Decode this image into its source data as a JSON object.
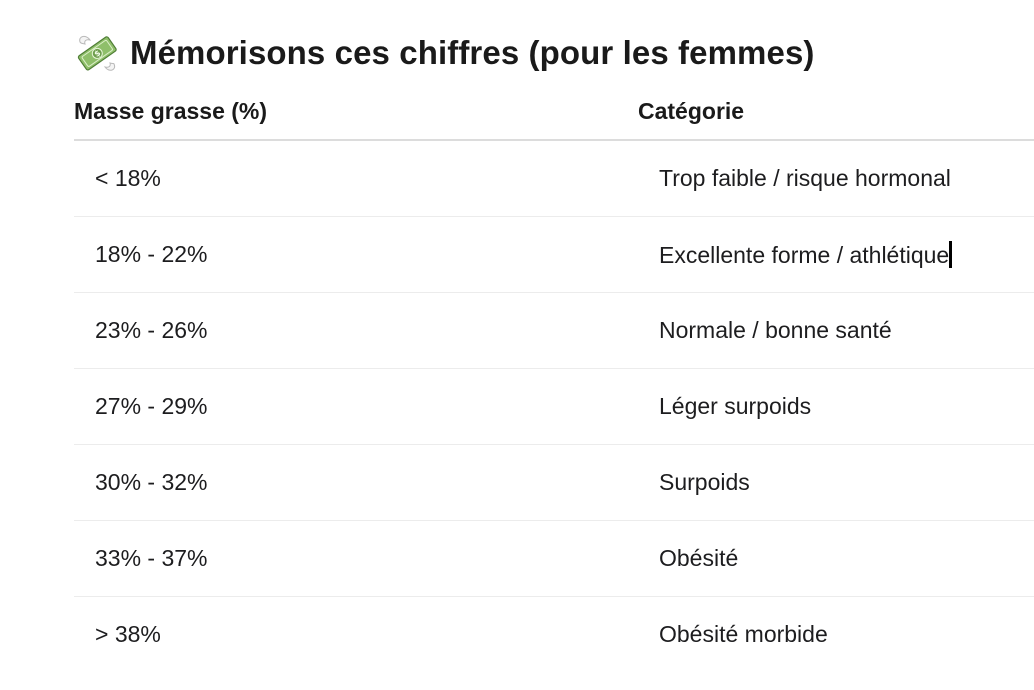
{
  "header": {
    "icon": "money-with-wings-icon",
    "title": "Mémorisons ces chiffres (pour les femmes)"
  },
  "table": {
    "columns": [
      "Masse grasse (%)",
      "Catégorie"
    ],
    "rows": [
      {
        "range": "< 18%",
        "category": "Trop faible / risque hormonal"
      },
      {
        "range": "18% - 22%",
        "category": "Excellente forme / athlétique"
      },
      {
        "range": "23% - 26%",
        "category": "Normale / bonne santé"
      },
      {
        "range": "27% - 29%",
        "category": "Léger surpoids"
      },
      {
        "range": "30% - 32%",
        "category": "Surpoids"
      },
      {
        "range": "33% - 37%",
        "category": "Obésité"
      },
      {
        "range": "> 38%",
        "category": "Obésité morbide"
      }
    ]
  },
  "colors": {
    "text": "#1d1d1f",
    "divider": "#ececec",
    "header_divider": "#dcdcdc",
    "banknote_green": "#7fae5e"
  }
}
